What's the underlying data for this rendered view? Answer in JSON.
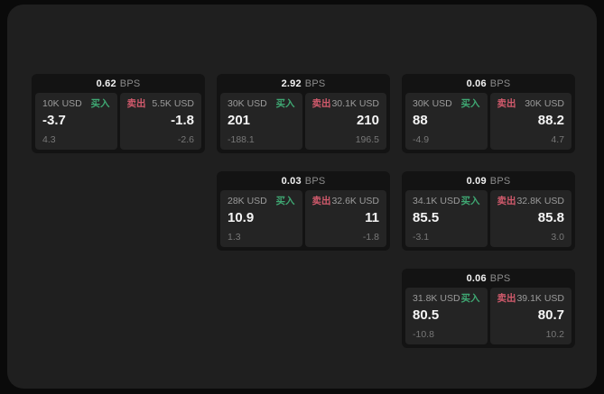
{
  "labels": {
    "bps": "BPS",
    "buy": "买入",
    "sell": "卖出"
  },
  "colors": {
    "background": "#0a0a0a",
    "panel": "#1f1f1f",
    "card": "#131313",
    "tile": "#242424",
    "buy_accent": "#3fa873",
    "sell_accent": "#d15a6c"
  },
  "cards": [
    {
      "bps": "0.62",
      "buy": {
        "amount": "10K USD",
        "value": "-3.7",
        "sub": "4.3"
      },
      "sell": {
        "amount": "5.5K USD",
        "value": "-1.8",
        "sub": "-2.6"
      }
    },
    {
      "bps": "2.92",
      "buy": {
        "amount": "30K USD",
        "value": "201",
        "sub": "-188.1"
      },
      "sell": {
        "amount": "30.1K USD",
        "value": "210",
        "sub": "196.5"
      }
    },
    {
      "bps": "0.06",
      "buy": {
        "amount": "30K USD",
        "value": "88",
        "sub": "-4.9"
      },
      "sell": {
        "amount": "30K USD",
        "value": "88.2",
        "sub": "4.7"
      }
    },
    {
      "bps": "0.03",
      "buy": {
        "amount": "28K USD",
        "value": "10.9",
        "sub": "1.3"
      },
      "sell": {
        "amount": "32.6K USD",
        "value": "11",
        "sub": "-1.8"
      }
    },
    {
      "bps": "0.09",
      "buy": {
        "amount": "34.1K USD",
        "value": "85.5",
        "sub": "-3.1"
      },
      "sell": {
        "amount": "32.8K USD",
        "value": "85.8",
        "sub": "3.0"
      }
    },
    {
      "bps": "0.06",
      "buy": {
        "amount": "31.8K USD",
        "value": "80.5",
        "sub": "-10.8"
      },
      "sell": {
        "amount": "39.1K USD",
        "value": "80.7",
        "sub": "10.2"
      }
    }
  ]
}
